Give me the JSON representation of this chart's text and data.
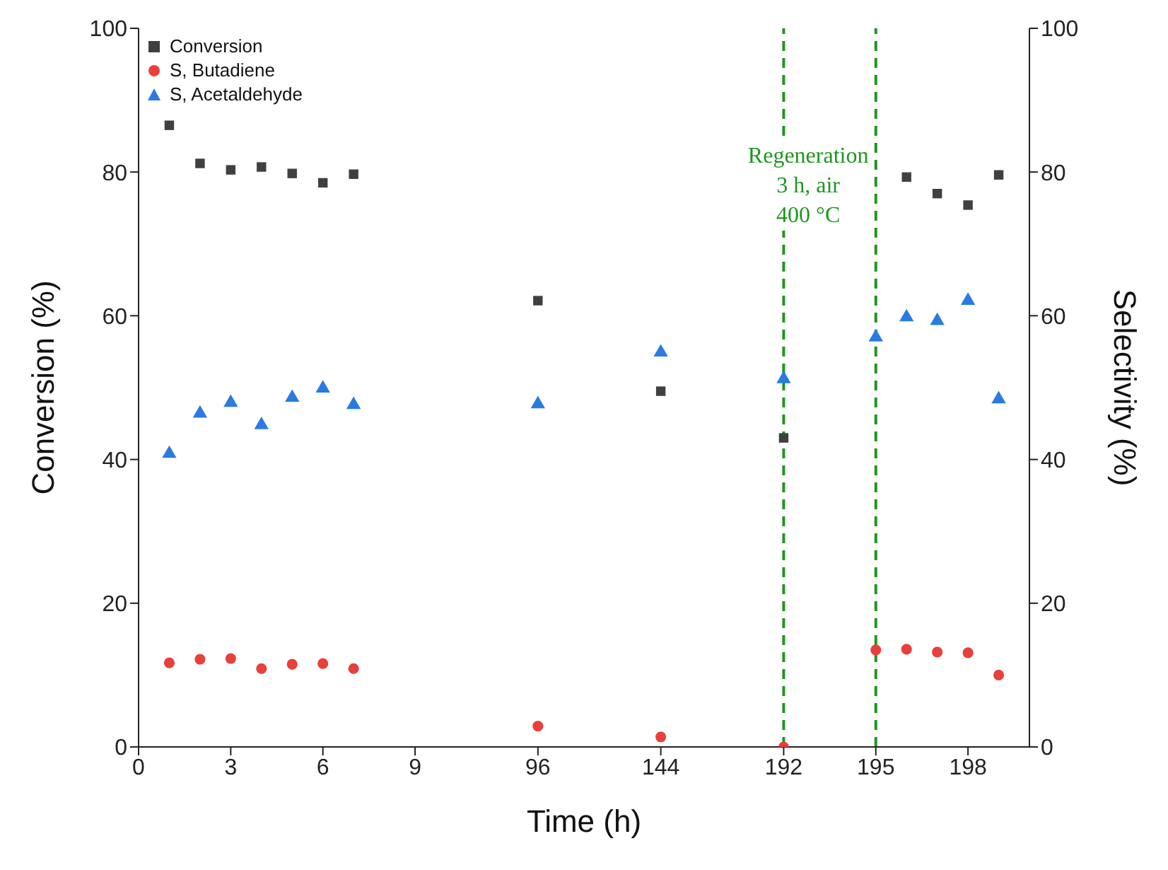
{
  "chart_data": {
    "type": "scatter",
    "xlabel": "Time (h)",
    "ylabel": "Conversion (%)",
    "y2label": "Selectivity (%)",
    "categories": [
      "0",
      null,
      null,
      "3",
      null,
      null,
      "6",
      null,
      null,
      "9",
      null,
      null,
      null,
      "96",
      null,
      null,
      null,
      "144",
      null,
      null,
      null,
      "192",
      null,
      null,
      "195",
      null,
      null,
      "198",
      null,
      null
    ],
    "series": [
      {
        "name": "Conversion",
        "color": "#404040",
        "marker": "square",
        "values": [
          null,
          86.5,
          81.2,
          80.3,
          80.7,
          79.8,
          78.5,
          79.7,
          null,
          null,
          null,
          null,
          null,
          62.1,
          null,
          null,
          null,
          49.5,
          null,
          null,
          null,
          43,
          null,
          null,
          null,
          79.3,
          77,
          75.4,
          79.6,
          null
        ]
      },
      {
        "name": "S, Butadiene",
        "color": "#e8403a",
        "marker": "circle",
        "values": [
          null,
          11.7,
          12.2,
          12.3,
          10.9,
          11.5,
          11.6,
          10.9,
          null,
          null,
          null,
          null,
          null,
          2.9,
          null,
          null,
          null,
          1.4,
          null,
          null,
          null,
          0,
          null,
          null,
          13.5,
          13.6,
          13.2,
          13.1,
          10.0,
          null
        ]
      },
      {
        "name": "S, Acetaldehyde",
        "color": "#2a7ae2",
        "marker": "triangle",
        "values": [
          null,
          40.8,
          46.4,
          47.9,
          44.8,
          48.6,
          49.9,
          47.6,
          null,
          null,
          null,
          null,
          null,
          47.7,
          null,
          null,
          null,
          54.9,
          null,
          null,
          null,
          51.2,
          null,
          null,
          57,
          59.8,
          59.3,
          62.1,
          48.4,
          null
        ]
      }
    ],
    "ylim": [
      0,
      100
    ],
    "yticks": [
      0,
      20,
      40,
      60,
      80,
      100
    ],
    "y2lim": [
      0,
      100
    ],
    "y2ticks": [
      0,
      20,
      40,
      60,
      80,
      100
    ],
    "ref_lines": [
      {
        "axis": "x",
        "value": "192",
        "color": "#1f961f",
        "line_style": "dashed"
      },
      {
        "axis": "x",
        "value": "195",
        "color": "#1f961f",
        "line_style": "dashed"
      }
    ],
    "annotations": [
      "Regeneration\n3 h, air\n400 °C"
    ],
    "legend": "top left",
    "grid": false
  }
}
